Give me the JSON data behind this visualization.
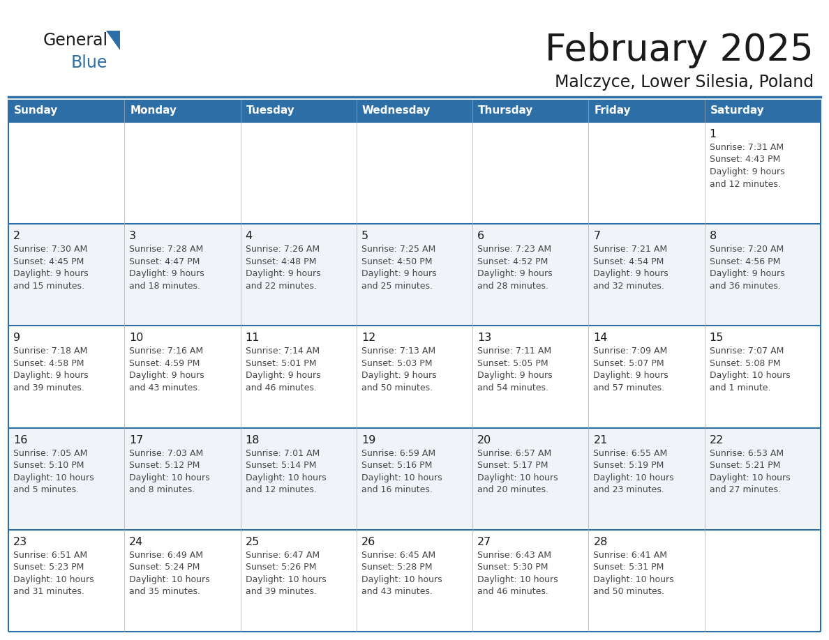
{
  "title": "February 2025",
  "subtitle": "Malczyce, Lower Silesia, Poland",
  "header_bg": "#2E6EA6",
  "header_text_color": "#FFFFFF",
  "cell_bg_white": "#FFFFFF",
  "cell_bg_light": "#F0F4F8",
  "border_color": "#2E6EA6",
  "day_headers": [
    "Sunday",
    "Monday",
    "Tuesday",
    "Wednesday",
    "Thursday",
    "Friday",
    "Saturday"
  ],
  "title_color": "#1a1a1a",
  "subtitle_color": "#1a1a1a",
  "text_color": "#444444",
  "day_num_color": "#1a1a1a",
  "logo_general_color": "#1a1a1a",
  "logo_blue_color": "#2E6EA6",
  "logo_triangle_color": "#2E6EA6",
  "weeks": [
    [
      {
        "day": "",
        "info": ""
      },
      {
        "day": "",
        "info": ""
      },
      {
        "day": "",
        "info": ""
      },
      {
        "day": "",
        "info": ""
      },
      {
        "day": "",
        "info": ""
      },
      {
        "day": "",
        "info": ""
      },
      {
        "day": "1",
        "info": "Sunrise: 7:31 AM\nSunset: 4:43 PM\nDaylight: 9 hours\nand 12 minutes."
      }
    ],
    [
      {
        "day": "2",
        "info": "Sunrise: 7:30 AM\nSunset: 4:45 PM\nDaylight: 9 hours\nand 15 minutes."
      },
      {
        "day": "3",
        "info": "Sunrise: 7:28 AM\nSunset: 4:47 PM\nDaylight: 9 hours\nand 18 minutes."
      },
      {
        "day": "4",
        "info": "Sunrise: 7:26 AM\nSunset: 4:48 PM\nDaylight: 9 hours\nand 22 minutes."
      },
      {
        "day": "5",
        "info": "Sunrise: 7:25 AM\nSunset: 4:50 PM\nDaylight: 9 hours\nand 25 minutes."
      },
      {
        "day": "6",
        "info": "Sunrise: 7:23 AM\nSunset: 4:52 PM\nDaylight: 9 hours\nand 28 minutes."
      },
      {
        "day": "7",
        "info": "Sunrise: 7:21 AM\nSunset: 4:54 PM\nDaylight: 9 hours\nand 32 minutes."
      },
      {
        "day": "8",
        "info": "Sunrise: 7:20 AM\nSunset: 4:56 PM\nDaylight: 9 hours\nand 36 minutes."
      }
    ],
    [
      {
        "day": "9",
        "info": "Sunrise: 7:18 AM\nSunset: 4:58 PM\nDaylight: 9 hours\nand 39 minutes."
      },
      {
        "day": "10",
        "info": "Sunrise: 7:16 AM\nSunset: 4:59 PM\nDaylight: 9 hours\nand 43 minutes."
      },
      {
        "day": "11",
        "info": "Sunrise: 7:14 AM\nSunset: 5:01 PM\nDaylight: 9 hours\nand 46 minutes."
      },
      {
        "day": "12",
        "info": "Sunrise: 7:13 AM\nSunset: 5:03 PM\nDaylight: 9 hours\nand 50 minutes."
      },
      {
        "day": "13",
        "info": "Sunrise: 7:11 AM\nSunset: 5:05 PM\nDaylight: 9 hours\nand 54 minutes."
      },
      {
        "day": "14",
        "info": "Sunrise: 7:09 AM\nSunset: 5:07 PM\nDaylight: 9 hours\nand 57 minutes."
      },
      {
        "day": "15",
        "info": "Sunrise: 7:07 AM\nSunset: 5:08 PM\nDaylight: 10 hours\nand 1 minute."
      }
    ],
    [
      {
        "day": "16",
        "info": "Sunrise: 7:05 AM\nSunset: 5:10 PM\nDaylight: 10 hours\nand 5 minutes."
      },
      {
        "day": "17",
        "info": "Sunrise: 7:03 AM\nSunset: 5:12 PM\nDaylight: 10 hours\nand 8 minutes."
      },
      {
        "day": "18",
        "info": "Sunrise: 7:01 AM\nSunset: 5:14 PM\nDaylight: 10 hours\nand 12 minutes."
      },
      {
        "day": "19",
        "info": "Sunrise: 6:59 AM\nSunset: 5:16 PM\nDaylight: 10 hours\nand 16 minutes."
      },
      {
        "day": "20",
        "info": "Sunrise: 6:57 AM\nSunset: 5:17 PM\nDaylight: 10 hours\nand 20 minutes."
      },
      {
        "day": "21",
        "info": "Sunrise: 6:55 AM\nSunset: 5:19 PM\nDaylight: 10 hours\nand 23 minutes."
      },
      {
        "day": "22",
        "info": "Sunrise: 6:53 AM\nSunset: 5:21 PM\nDaylight: 10 hours\nand 27 minutes."
      }
    ],
    [
      {
        "day": "23",
        "info": "Sunrise: 6:51 AM\nSunset: 5:23 PM\nDaylight: 10 hours\nand 31 minutes."
      },
      {
        "day": "24",
        "info": "Sunrise: 6:49 AM\nSunset: 5:24 PM\nDaylight: 10 hours\nand 35 minutes."
      },
      {
        "day": "25",
        "info": "Sunrise: 6:47 AM\nSunset: 5:26 PM\nDaylight: 10 hours\nand 39 minutes."
      },
      {
        "day": "26",
        "info": "Sunrise: 6:45 AM\nSunset: 5:28 PM\nDaylight: 10 hours\nand 43 minutes."
      },
      {
        "day": "27",
        "info": "Sunrise: 6:43 AM\nSunset: 5:30 PM\nDaylight: 10 hours\nand 46 minutes."
      },
      {
        "day": "28",
        "info": "Sunrise: 6:41 AM\nSunset: 5:31 PM\nDaylight: 10 hours\nand 50 minutes."
      },
      {
        "day": "",
        "info": ""
      }
    ]
  ]
}
